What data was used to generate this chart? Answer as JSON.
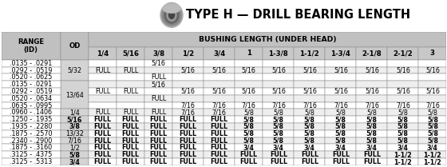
{
  "title": "TYPE H — DRILL BEARING LENGTH",
  "col_headers": [
    "RANGE\n(ID)",
    "OD",
    "1/4",
    "5/16",
    "3/8",
    "1/2",
    "3/4",
    "1",
    "1-3/8",
    "1-1/2",
    "1-3/4",
    "2-1/8",
    "2-1/2",
    "3"
  ],
  "bushing_header": "BUSHING LENGTH (UNDER HEAD)",
  "rows": [
    [
      ".0135 - .0291",
      "",
      "",
      "",
      "5/16",
      "",
      "",
      "",
      "",
      "",
      "",
      "",
      "",
      ""
    ],
    [
      ".0292 - .0519",
      "5/32",
      "FULL",
      "FULL",
      "",
      "5/16",
      "5/16",
      "5/16",
      "5/16",
      "5/16",
      "5/16",
      "5/16",
      "5/16",
      "5/16"
    ],
    [
      ".0520 - .0625",
      "",
      "",
      "",
      "FULL",
      "",
      "",
      "",
      "",
      "",
      "",
      "",
      "",
      ""
    ],
    [
      ".0135 - .0291",
      "",
      "",
      "",
      "5/16",
      "",
      "",
      "",
      "",
      "",
      "",
      "",
      "",
      ""
    ],
    [
      ".0292 - .0519",
      "13/64",
      "FULL",
      "FULL",
      "",
      "5/16",
      "5/16",
      "5/16",
      "5/16",
      "5/16",
      "5/16",
      "5/16",
      "5/16",
      "5/16"
    ],
    [
      ".0520 - .0634",
      "",
      "",
      "",
      "FULL",
      "",
      "",
      "",
      "",
      "",
      "",
      "",
      "",
      ""
    ],
    [
      ".0635 - .0995",
      "",
      "",
      "",
      "",
      "7/16",
      "7/16",
      "7/16",
      "7/16",
      "7/16",
      "7/16",
      "7/16",
      "7/16",
      "7/16"
    ],
    [
      ".0960 - .1406",
      "1/4",
      "FULL",
      "FULL",
      "FULL",
      "7/16",
      "7/16",
      "5/8",
      "5/8",
      "5/8",
      "5/8",
      "5/8",
      "5/8",
      "5/8"
    ],
    [
      ".1250 - .1935",
      "5/16",
      "FULL",
      "FULL",
      "FULL",
      "FULL",
      "FULL",
      "5/8",
      "5/8",
      "5/8",
      "5/8",
      "5/8",
      "5/8",
      "5/8"
    ],
    [
      ".1935 - .2280",
      "3/8",
      "FULL",
      "FULL",
      "FULL",
      "FULL",
      "FULL",
      "5/8",
      "5/8",
      "5/8",
      "5/8",
      "5/8",
      "5/8",
      "5/8"
    ],
    [
      ".1875 - .2570",
      "13/32",
      "FULL",
      "FULL",
      "FULL",
      "FULL",
      "FULL",
      "5/8",
      "5/8",
      "5/8",
      "5/8",
      "5/8",
      "5/8",
      "5/8"
    ],
    [
      ".2340 - .2900",
      "7/16",
      "FULL",
      "FULL",
      "FULL",
      "FULL",
      "FULL",
      "5/8",
      "5/8",
      "5/8",
      "5/8",
      "5/8",
      "5/8",
      "5/8"
    ],
    [
      ".1875 - .3160",
      "1/2",
      "FULL",
      "FULL",
      "FULL",
      "FULL",
      "FULL",
      "3/4",
      "3/4",
      "3/4",
      "3/4",
      "3/4",
      "3/4",
      "3/4"
    ],
    [
      ".3125 - .4375",
      "5/8",
      "FULL",
      "FULL",
      "FULL",
      "FULL",
      "FULL",
      "FULL",
      "FULL",
      "FULL",
      "FULL",
      "FULL",
      "1-1/2",
      "1-1/2"
    ],
    [
      ".3125 - .5313",
      "3/4",
      "FULL",
      "FULL",
      "FULL",
      "FULL",
      "FULL",
      "FULL",
      "FULL",
      "FULL",
      "FULL",
      "FULL",
      "1-1/2",
      "1-1/2"
    ]
  ],
  "od_groups": [
    {
      "od": "5/32",
      "rows": [
        0,
        1,
        2
      ]
    },
    {
      "od": "13/64",
      "rows": [
        3,
        4,
        5,
        6
      ]
    }
  ],
  "bold_od_rows": [
    8,
    9,
    13,
    14
  ],
  "italic_od_rows": [
    10,
    11,
    12
  ],
  "col_widths_rel": [
    1.9,
    0.9,
    0.9,
    0.9,
    0.9,
    1.0,
    1.0,
    0.9,
    1.0,
    1.0,
    1.0,
    1.0,
    1.0,
    0.9
  ],
  "header_bg": "#c0c0c0",
  "header2_bg": "#c8c8c8",
  "od_group_bg": "#d4d4d4",
  "cell_bg_white": "#ffffff",
  "cell_bg_gray": "#eeeeee",
  "grid_color": "#888888",
  "title_fontsize": 10.5,
  "table_fontsize": 5.8,
  "header_fontsize": 6.2
}
